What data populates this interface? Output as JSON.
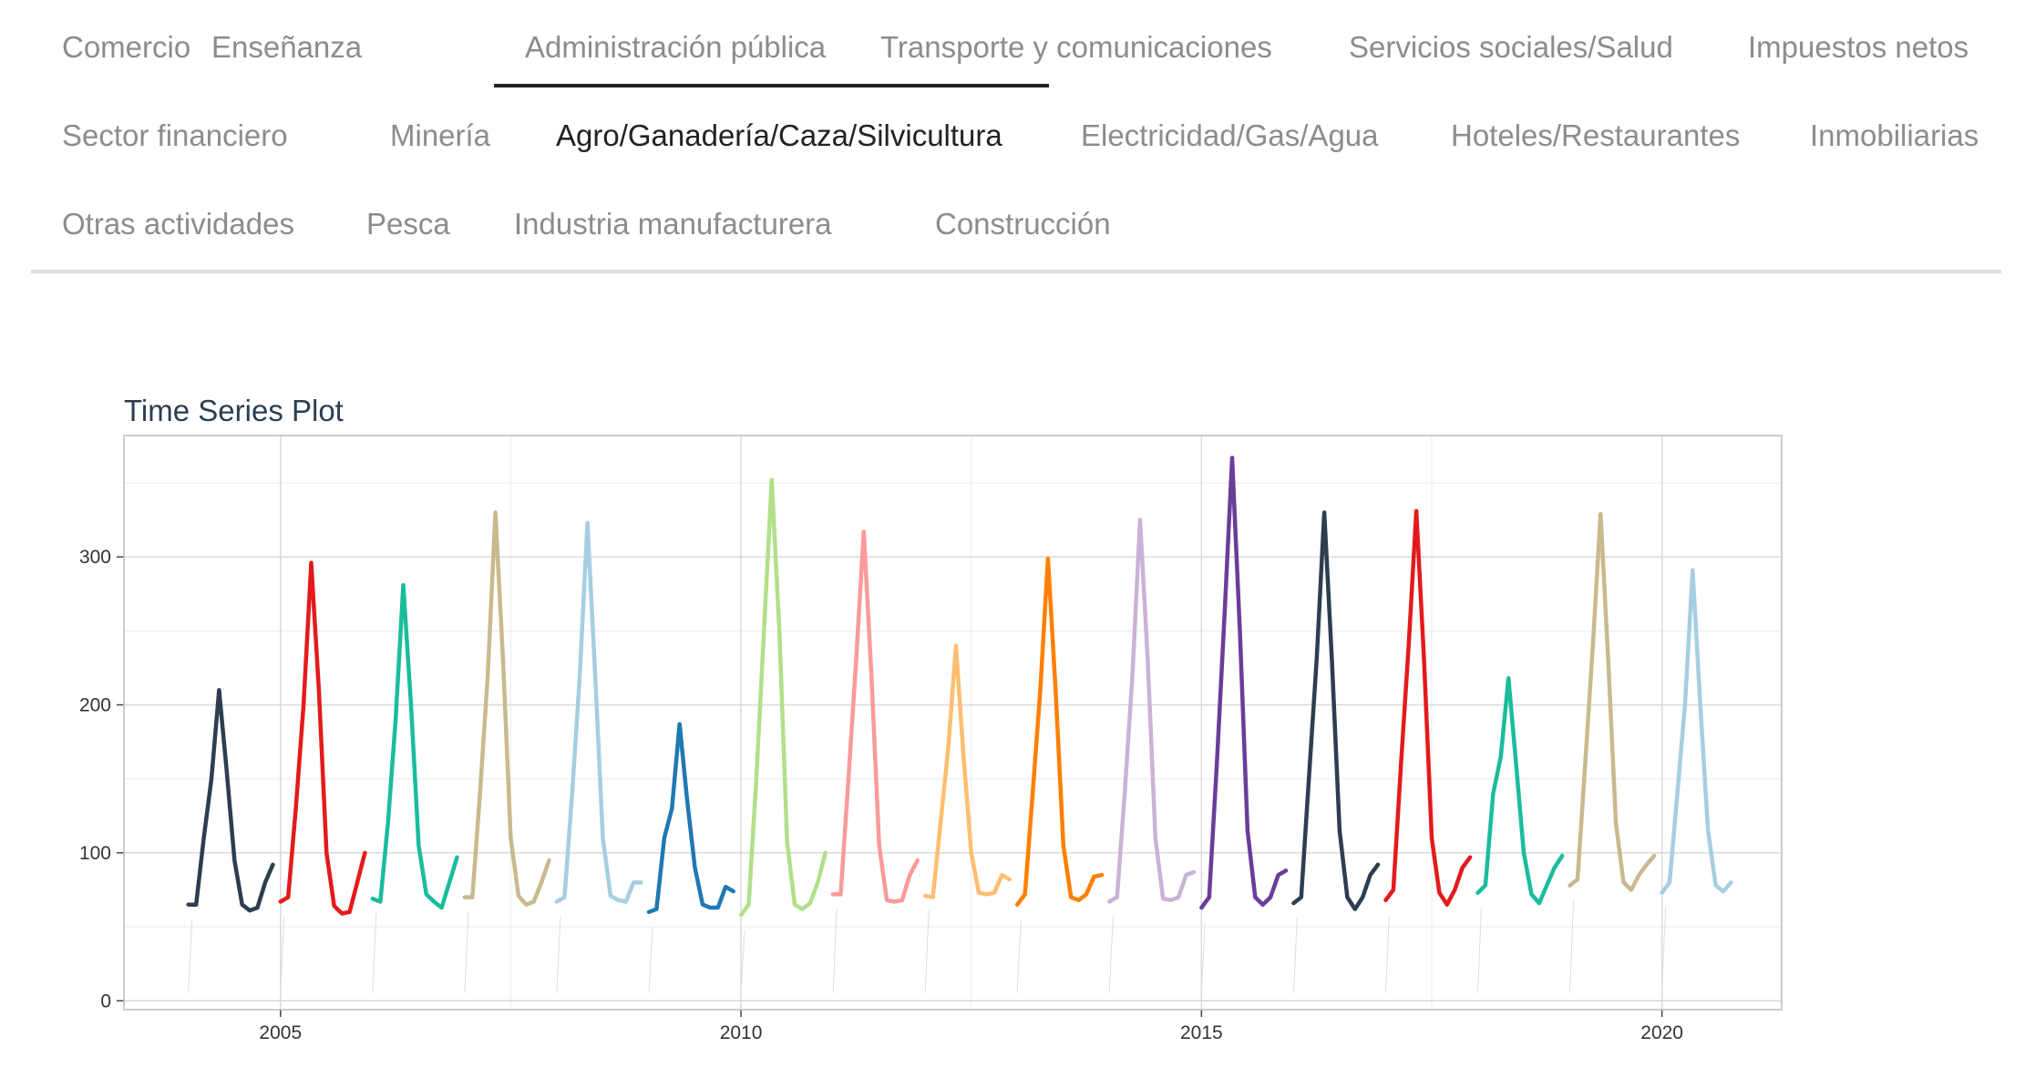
{
  "tabs": [
    {
      "label": "Comercio"
    },
    {
      "label": "Enseñanza"
    },
    {
      "label": "Administración pública"
    },
    {
      "label": "Transporte y comunicaciones"
    },
    {
      "label": "Servicios sociales/Salud"
    },
    {
      "label": "Impuestos netos"
    },
    {
      "label": "Sector financiero"
    },
    {
      "label": "Minería"
    },
    {
      "label": "Agro/Ganadería/Caza/Silvicultura"
    },
    {
      "label": "Electricidad/Gas/Agua"
    },
    {
      "label": "Hoteles/Restaurantes"
    },
    {
      "label": "Inmobiliarias"
    },
    {
      "label": "Otras actividades"
    },
    {
      "label": "Pesca"
    },
    {
      "label": "Industria manufacturera"
    },
    {
      "label": "Construcción"
    }
  ],
  "active_tab": "Agro/Ganadería/Caza/Silvicultura",
  "hover_tab": "Administración pública",
  "chart_data": {
    "type": "line",
    "title": "Time Series Plot",
    "xlabel": "",
    "ylabel": "",
    "xlim": [
      2003.3,
      2021.3
    ],
    "ylim": [
      -6,
      382
    ],
    "x_ticks": [
      2005,
      2010,
      2015,
      2020
    ],
    "y_ticks": [
      0,
      100,
      200,
      300
    ],
    "grid": true,
    "series": [
      {
        "year": 2004,
        "color": "#2c3e50",
        "values": [
          65,
          65,
          110,
          150,
          210,
          155,
          95,
          65,
          61,
          63,
          80,
          92
        ]
      },
      {
        "year": 2005,
        "color": "#e31a1c",
        "values": [
          67,
          70,
          130,
          200,
          296,
          210,
          100,
          64,
          59,
          60,
          80,
          100
        ]
      },
      {
        "year": 2006,
        "color": "#1abc9c",
        "values": [
          69,
          67,
          120,
          190,
          281,
          200,
          105,
          72,
          67,
          63,
          80,
          97
        ]
      },
      {
        "year": 2007,
        "color": "#c8b98e",
        "values": [
          70,
          70,
          140,
          220,
          330,
          230,
          110,
          71,
          65,
          67,
          80,
          95
        ]
      },
      {
        "year": 2008,
        "color": "#a6cee3",
        "values": [
          67,
          70,
          140,
          220,
          323,
          220,
          110,
          71,
          68,
          67,
          80,
          80
        ]
      },
      {
        "year": 2009,
        "color": "#1f78b4",
        "values": [
          60,
          62,
          110,
          130,
          187,
          135,
          90,
          65,
          63,
          63,
          77,
          74
        ]
      },
      {
        "year": 2010,
        "color": "#b2df8a",
        "values": [
          58,
          65,
          150,
          250,
          352,
          250,
          108,
          65,
          62,
          66,
          80,
          100
        ]
      },
      {
        "year": 2011,
        "color": "#fb9a99",
        "values": [
          72,
          72,
          150,
          230,
          317,
          220,
          105,
          68,
          67,
          68,
          85,
          95
        ]
      },
      {
        "year": 2012,
        "color": "#fdbf6f",
        "values": [
          71,
          70,
          120,
          170,
          240,
          165,
          100,
          73,
          72,
          73,
          85,
          82
        ]
      },
      {
        "year": 2013,
        "color": "#ff7f00",
        "values": [
          65,
          72,
          140,
          210,
          299,
          210,
          105,
          70,
          68,
          72,
          84,
          85
        ]
      },
      {
        "year": 2014,
        "color": "#cab2d6",
        "values": [
          67,
          70,
          140,
          220,
          325,
          230,
          110,
          69,
          68,
          70,
          85,
          87
        ]
      },
      {
        "year": 2015,
        "color": "#6a3d9a",
        "values": [
          63,
          70,
          160,
          260,
          367,
          250,
          115,
          70,
          65,
          70,
          85,
          88
        ]
      },
      {
        "year": 2016,
        "color": "#2c3e50",
        "values": [
          66,
          70,
          150,
          230,
          330,
          230,
          115,
          70,
          62,
          70,
          85,
          92
        ]
      },
      {
        "year": 2017,
        "color": "#e31a1c",
        "values": [
          68,
          75,
          160,
          240,
          331,
          230,
          110,
          73,
          65,
          75,
          90,
          97
        ]
      },
      {
        "year": 2018,
        "color": "#1abc9c",
        "values": [
          73,
          78,
          140,
          165,
          218,
          160,
          100,
          72,
          66,
          78,
          90,
          98
        ]
      },
      {
        "year": 2019,
        "color": "#c8b98e",
        "values": [
          78,
          82,
          160,
          240,
          329,
          230,
          120,
          80,
          75,
          85,
          92,
          98
        ]
      },
      {
        "year": 2020,
        "color": "#a6cee3",
        "values": [
          73,
          80,
          140,
          200,
          291,
          200,
          115,
          78,
          74,
          80
        ]
      }
    ]
  }
}
